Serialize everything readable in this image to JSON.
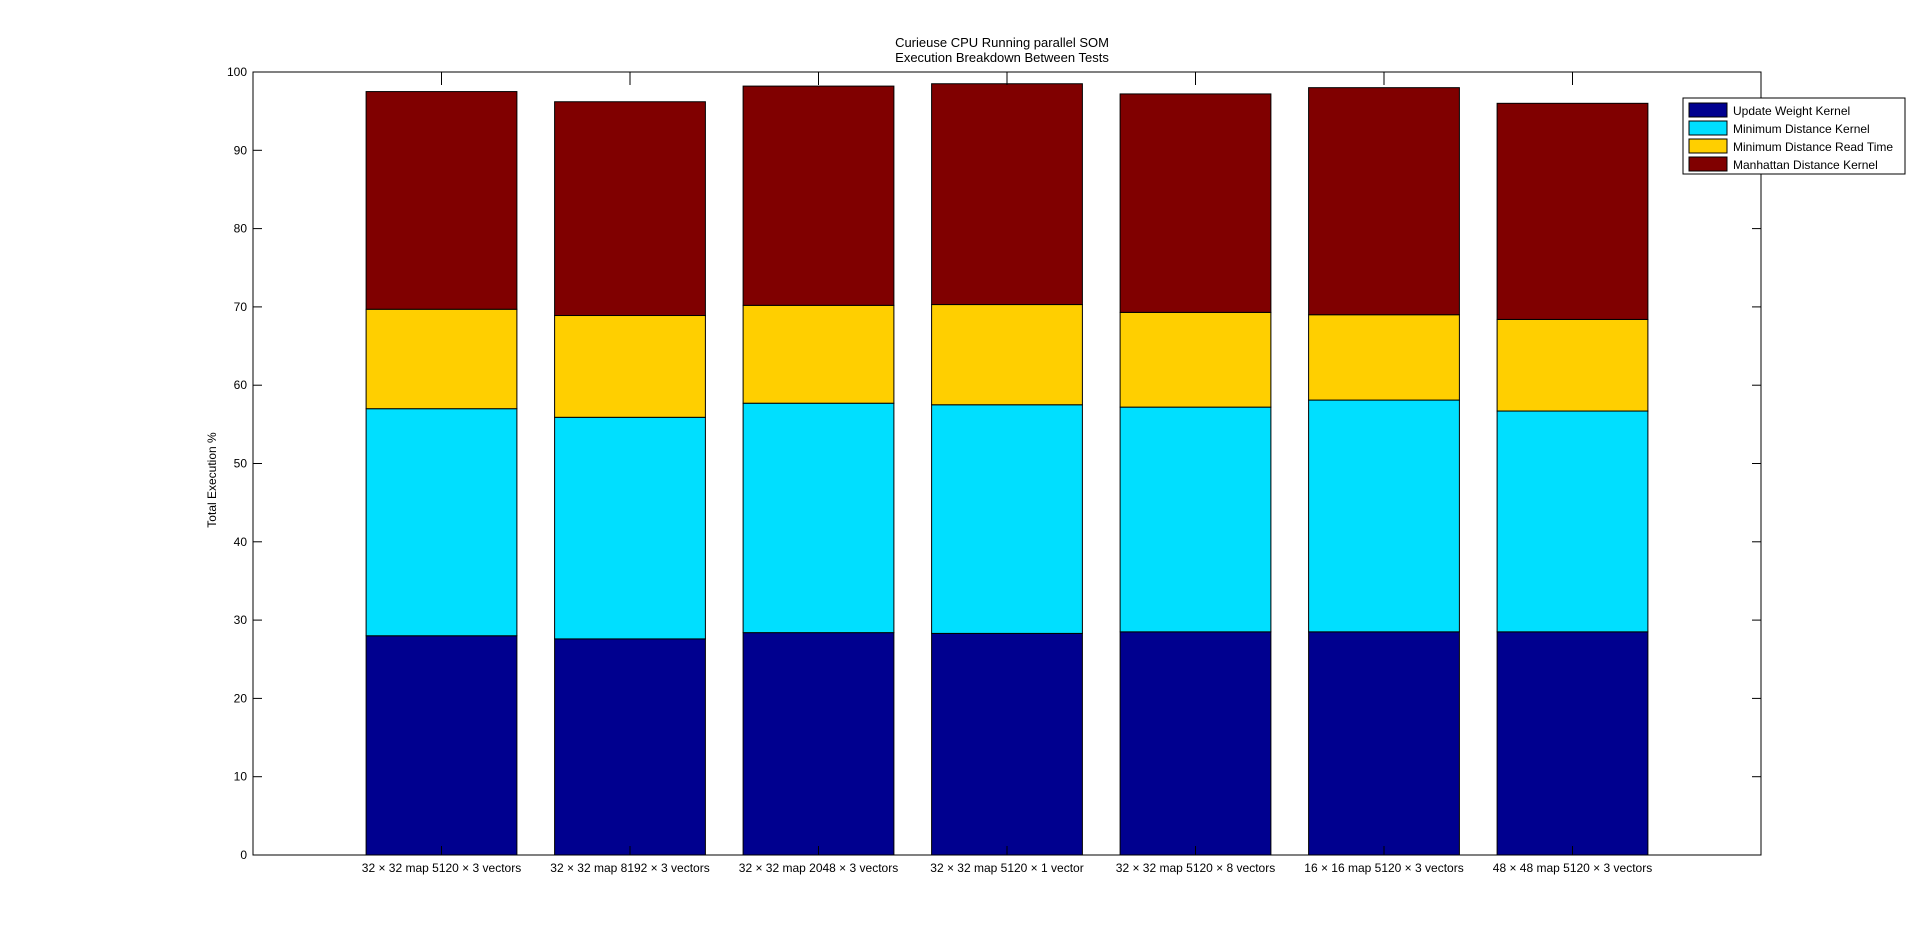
{
  "chart_data": {
    "type": "bar",
    "stacked": true,
    "title_lines": [
      "Curieuse CPU Running parallel SOM",
      "Execution Breakdown Between Tests"
    ],
    "xlabel": "",
    "ylabel": "Total Execution %",
    "ylim": [
      0,
      100
    ],
    "yticks": [
      0,
      10,
      20,
      30,
      40,
      50,
      60,
      70,
      80,
      90,
      100
    ],
    "grid": false,
    "legend_position": "top-right",
    "categories": [
      "32 × 32 map 5120 × 3 vectors",
      "32 × 32 map 8192 × 3 vectors",
      "32 × 32 map 2048 × 3 vectors",
      "32 × 32 map 5120 × 1 vector",
      "32 × 32 map 5120 × 8 vectors",
      "16 × 16 map 5120 × 3 vectors",
      "48 × 48 map 5120 × 3 vectors"
    ],
    "series": [
      {
        "name": "Update Weight Kernel",
        "color": "#00008f",
        "values": [
          28.0,
          27.6,
          28.4,
          28.3,
          28.5,
          28.5,
          28.5
        ]
      },
      {
        "name": "Minimum Distance Kernel",
        "color": "#00dfff",
        "values": [
          29.0,
          28.3,
          29.3,
          29.2,
          28.7,
          29.6,
          28.2
        ]
      },
      {
        "name": "Minimum Distance Read Time",
        "color": "#ffcf00",
        "values": [
          12.7,
          13.0,
          12.5,
          12.8,
          12.1,
          10.9,
          11.7
        ]
      },
      {
        "name": "Manhattan Distance Kernel",
        "color": "#800000",
        "values": [
          27.8,
          27.3,
          28.0,
          28.2,
          27.9,
          29.0,
          27.6
        ]
      }
    ]
  }
}
